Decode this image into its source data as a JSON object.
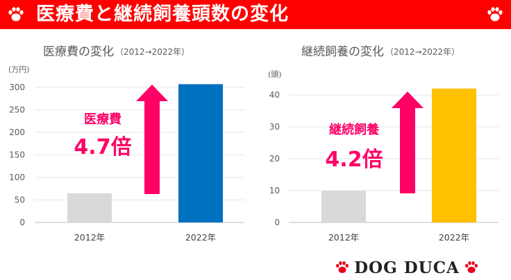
{
  "header": {
    "title": "医療費と継続飼養頭数の変化",
    "bg_color": "#ff0000",
    "left_icon": "paw-icon",
    "right_icon": "paw-icon"
  },
  "chart_data": [
    {
      "type": "bar",
      "title": "医療費の変化",
      "subtitle": "（2012→2022年）",
      "ylabel": "(万円)",
      "categories": [
        "2012年",
        "2022年"
      ],
      "values": [
        65,
        307
      ],
      "ylim": [
        0,
        300
      ],
      "yticks": [
        0,
        50,
        100,
        150,
        200,
        250,
        300
      ],
      "colors": [
        "#d9d9d9",
        "#0070c0"
      ],
      "grid": true,
      "callout": {
        "label": "医療費",
        "value": "4.7倍",
        "arrow_color": "#ff0066"
      }
    },
    {
      "type": "bar",
      "title": "継続飼養の変化",
      "subtitle": "（2012→2022年）",
      "ylabel": "(頭)",
      "categories": [
        "2012年",
        "2022年"
      ],
      "values": [
        10,
        42
      ],
      "ylim": [
        0,
        40
      ],
      "yticks": [
        0,
        10,
        20,
        30,
        40
      ],
      "colors": [
        "#d9d9d9",
        "#ffc000"
      ],
      "grid": true,
      "callout": {
        "label": "継続飼養",
        "value": "4.2倍",
        "arrow_color": "#ff0066"
      }
    }
  ],
  "logo": {
    "text": "DOG DUCA",
    "icon": "paw-icon",
    "icon_color": "#e8001c"
  }
}
